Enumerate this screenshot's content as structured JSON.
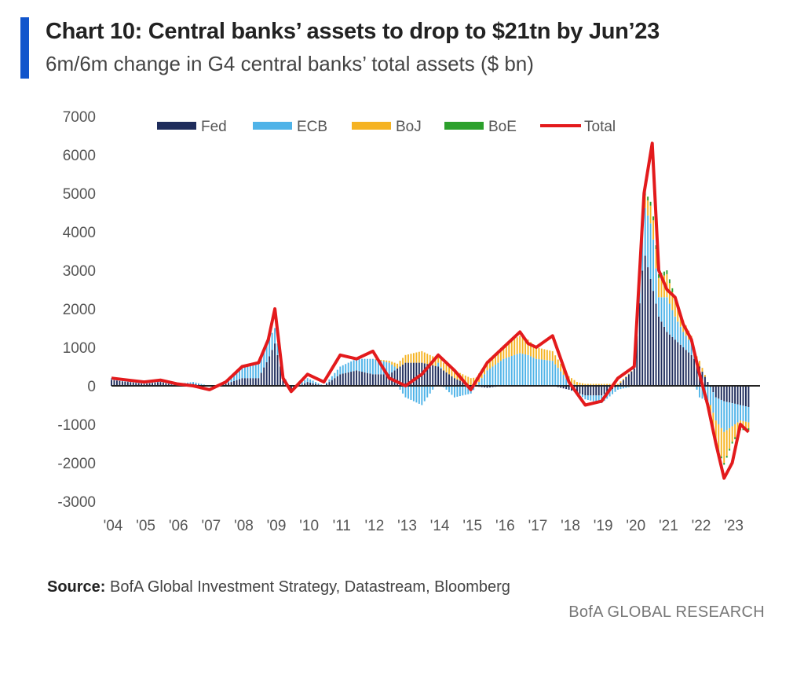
{
  "header": {
    "title": "Chart 10: Central banks’ assets to drop to $21tn by Jun’23",
    "subtitle": "6m/6m change in G4 central banks’ total assets ($ bn)"
  },
  "footer": {
    "source_label": "Source:",
    "source_text": "BofA Global Investment Strategy, Datastream, Bloomberg",
    "brand": "BofA GLOBAL RESEARCH"
  },
  "colors": {
    "Fed": "#1f2d5c",
    "ECB": "#4fb3e8",
    "BoJ": "#f5b323",
    "BoE": "#2ca02c",
    "Total": "#e31a1c"
  },
  "chart_data": {
    "type": "bar",
    "stacked": true,
    "title": "Chart 10: Central banks’ assets to drop to $21tn by Jun’23",
    "subtitle": "6m/6m change in G4 central banks’ total assets ($ bn)",
    "ylim": [
      -3000,
      7000
    ],
    "yticks": [
      7000,
      6000,
      5000,
      4000,
      3000,
      2000,
      1000,
      0,
      -1000,
      -2000,
      -3000
    ],
    "xticks": [
      "'04",
      "'05",
      "'06",
      "'07",
      "'08",
      "'09",
      "'10",
      "'11",
      "'12",
      "'13",
      "'14",
      "'15",
      "'16",
      "'17",
      "'18",
      "'19",
      "'20",
      "'21",
      "'22",
      "'23"
    ],
    "legend_position": "top",
    "legend": [
      "Fed",
      "ECB",
      "BoJ",
      "BoE",
      "Total"
    ],
    "x": [
      2004.0,
      2004.5,
      2005.0,
      2005.5,
      2006.0,
      2006.5,
      2007.0,
      2007.5,
      2008.0,
      2008.5,
      2008.8,
      2009.0,
      2009.25,
      2009.5,
      2010.0,
      2010.5,
      2011.0,
      2011.5,
      2012.0,
      2012.5,
      2013.0,
      2013.5,
      2014.0,
      2014.5,
      2015.0,
      2015.5,
      2016.0,
      2016.5,
      2016.75,
      2017.0,
      2017.5,
      2018.0,
      2018.5,
      2019.0,
      2019.5,
      2020.0,
      2020.3,
      2020.55,
      2020.75,
      2021.0,
      2021.25,
      2021.5,
      2021.75,
      2022.0,
      2022.25,
      2022.5,
      2022.75,
      2023.0,
      2023.25,
      2023.5
    ],
    "series": [
      {
        "name": "Fed",
        "type": "bar",
        "values": [
          150,
          100,
          50,
          100,
          0,
          50,
          0,
          50,
          200,
          200,
          700,
          1100,
          200,
          -100,
          100,
          0,
          300,
          400,
          300,
          300,
          600,
          600,
          500,
          200,
          0,
          -50,
          0,
          0,
          0,
          0,
          0,
          -100,
          -250,
          -250,
          0,
          450,
          3500,
          2600,
          1800,
          1400,
          1200,
          1000,
          800,
          500,
          100,
          -300,
          -400,
          -450,
          -500,
          -550
        ]
      },
      {
        "name": "ECB",
        "type": "bar",
        "values": [
          50,
          50,
          50,
          50,
          50,
          50,
          0,
          0,
          300,
          400,
          500,
          400,
          100,
          0,
          100,
          0,
          200,
          300,
          400,
          300,
          -300,
          -500,
          100,
          -300,
          -200,
          400,
          700,
          850,
          800,
          700,
          650,
          100,
          -100,
          -200,
          -100,
          0,
          1200,
          1500,
          500,
          900,
          600,
          400,
          300,
          -300,
          -400,
          -600,
          -800,
          -600,
          -400,
          -400
        ]
      },
      {
        "name": "BoJ",
        "type": "bar",
        "values": [
          0,
          0,
          0,
          0,
          0,
          0,
          0,
          0,
          0,
          0,
          0,
          0,
          0,
          0,
          0,
          0,
          0,
          0,
          0,
          50,
          200,
          300,
          200,
          200,
          200,
          250,
          350,
          450,
          400,
          300,
          250,
          150,
          50,
          50,
          50,
          0,
          300,
          500,
          500,
          600,
          400,
          300,
          200,
          150,
          0,
          -600,
          -800,
          -400,
          -200,
          -150
        ]
      },
      {
        "name": "BoE",
        "type": "bar",
        "values": [
          0,
          0,
          0,
          0,
          0,
          0,
          0,
          0,
          0,
          0,
          0,
          0,
          0,
          0,
          0,
          0,
          0,
          0,
          0,
          0,
          0,
          0,
          0,
          0,
          0,
          0,
          0,
          0,
          0,
          0,
          0,
          0,
          0,
          0,
          0,
          0,
          100,
          100,
          100,
          100,
          100,
          0,
          0,
          0,
          0,
          -50,
          -50,
          -50,
          -50,
          -50
        ]
      },
      {
        "name": "Total",
        "type": "line",
        "values": [
          200,
          150,
          100,
          150,
          50,
          0,
          -100,
          100,
          500,
          600,
          1200,
          2000,
          200,
          -150,
          300,
          100,
          800,
          700,
          900,
          200,
          0,
          300,
          800,
          400,
          -100,
          600,
          1000,
          1400,
          1100,
          1000,
          1300,
          100,
          -500,
          -400,
          200,
          500,
          5000,
          6300,
          3000,
          2500,
          2300,
          1600,
          1200,
          300,
          -500,
          -1500,
          -2400,
          -2000,
          -1000,
          -1200
        ]
      }
    ]
  }
}
